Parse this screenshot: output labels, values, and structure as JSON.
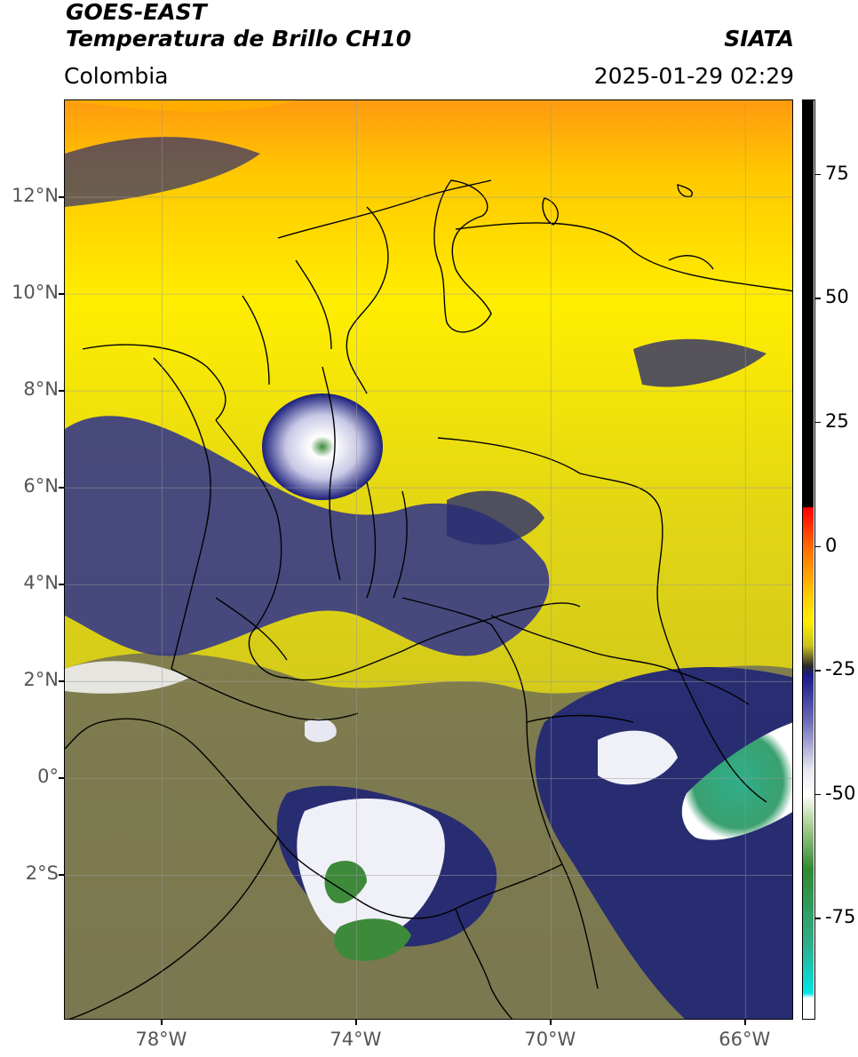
{
  "header": {
    "satellite": "GOES-EAST",
    "product": "Temperatura de Brillo CH10",
    "region": "Colombia",
    "agency": "SIATA",
    "datetime": "2025-01-29 02:29"
  },
  "map": {
    "lat_range": [
      -5,
      14
    ],
    "lon_range": [
      -80,
      -65
    ],
    "lat_ticks": [
      {
        "value": 12,
        "label": "12°N"
      },
      {
        "value": 10,
        "label": "10°N"
      },
      {
        "value": 8,
        "label": "8°N"
      },
      {
        "value": 6,
        "label": "6°N"
      },
      {
        "value": 4,
        "label": "4°N"
      },
      {
        "value": 2,
        "label": "2°N"
      },
      {
        "value": 0,
        "label": "0°"
      },
      {
        "value": -2,
        "label": "2°S"
      }
    ],
    "lon_ticks": [
      {
        "value": -78,
        "label": "78°W"
      },
      {
        "value": -74,
        "label": "74°W"
      },
      {
        "value": -70,
        "label": "70°W"
      },
      {
        "value": -66,
        "label": "66°W"
      }
    ],
    "gridlines": true,
    "colors": {
      "warm_orange": "#ff9a10",
      "yellow": "#ffee00",
      "olive": "#c8c21e",
      "dark_blue": "#1a1f7a",
      "white": "#f0f0f8",
      "green": "#3d8a3a",
      "teal": "#2fae8a",
      "border": "#000000"
    }
  },
  "colorbar": {
    "range": [
      -95,
      90
    ],
    "ticks": [
      {
        "value": 75,
        "label": "75"
      },
      {
        "value": 50,
        "label": "50"
      },
      {
        "value": 25,
        "label": "25"
      },
      {
        "value": 0,
        "label": "0"
      },
      {
        "value": -25,
        "label": "-25"
      },
      {
        "value": -50,
        "label": "-50"
      },
      {
        "value": -75,
        "label": "-75"
      }
    ],
    "stops": [
      {
        "value": 90,
        "color": "#000000"
      },
      {
        "value": 8,
        "color": "#000000"
      },
      {
        "value": 7.9,
        "color": "#ff0000"
      },
      {
        "value": 0,
        "color": "#ff6a00"
      },
      {
        "value": -10,
        "color": "#ffcc00"
      },
      {
        "value": -15,
        "color": "#ffee00"
      },
      {
        "value": -20,
        "color": "#c8c21e"
      },
      {
        "value": -24,
        "color": "#2a2a2a"
      },
      {
        "value": -26,
        "color": "#1a1a8a"
      },
      {
        "value": -35,
        "color": "#6a6ab8"
      },
      {
        "value": -45,
        "color": "#e8e8f2"
      },
      {
        "value": -50,
        "color": "#ffffff"
      },
      {
        "value": -55,
        "color": "#b9d8a0"
      },
      {
        "value": -65,
        "color": "#2f8a2f"
      },
      {
        "value": -80,
        "color": "#2fae8a"
      },
      {
        "value": -90,
        "color": "#00e5e5"
      },
      {
        "value": -91,
        "color": "#ffffff"
      },
      {
        "value": -95,
        "color": "#ffffff"
      }
    ]
  }
}
